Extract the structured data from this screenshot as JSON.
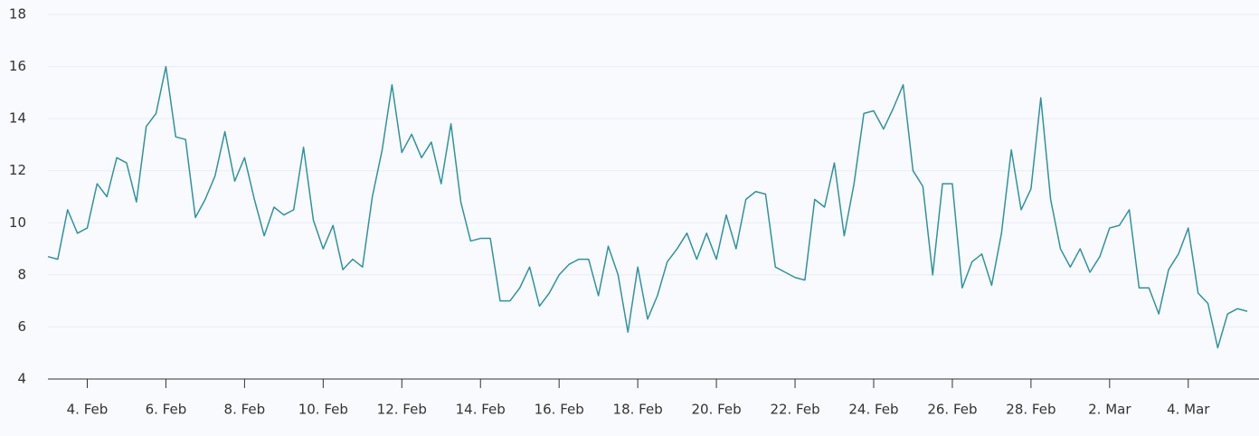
{
  "chart_data": {
    "type": "line",
    "categories": [
      null,
      null,
      null,
      null,
      "4. Feb",
      null,
      null,
      null,
      null,
      null,
      null,
      null,
      "6. Feb",
      null,
      null,
      null,
      null,
      null,
      null,
      null,
      "8. Feb",
      null,
      null,
      null,
      null,
      null,
      null,
      null,
      "10. Feb",
      null,
      null,
      null,
      null,
      null,
      null,
      null,
      "12. Feb",
      null,
      null,
      null,
      null,
      null,
      null,
      null,
      "14. Feb",
      null,
      null,
      null,
      null,
      null,
      null,
      null,
      "16. Feb",
      null,
      null,
      null,
      null,
      null,
      null,
      null,
      "18. Feb",
      null,
      null,
      null,
      null,
      null,
      null,
      null,
      "20. Feb",
      null,
      null,
      null,
      null,
      null,
      null,
      null,
      "22. Feb",
      null,
      null,
      null,
      null,
      null,
      null,
      null,
      "24. Feb",
      null,
      null,
      null,
      null,
      null,
      null,
      null,
      "26. Feb",
      null,
      null,
      null,
      null,
      null,
      null,
      null,
      "28. Feb",
      null,
      null,
      null,
      null,
      null,
      null,
      null,
      "2. Mar",
      null,
      null,
      null,
      null,
      null,
      null,
      null,
      "4. Mar",
      null,
      null,
      null,
      null,
      null,
      null
    ],
    "values": [
      8.7,
      8.6,
      10.5,
      9.6,
      9.8,
      11.5,
      11,
      12.5,
      12.3,
      10.8,
      13.7,
      14.2,
      16,
      13.3,
      13.2,
      10.2,
      10.9,
      11.8,
      13.5,
      11.6,
      12.5,
      10.9,
      9.5,
      10.6,
      10.3,
      10.5,
      12.9,
      10.1,
      9.0,
      9.9,
      8.2,
      8.6,
      8.3,
      11.0,
      12.8,
      15.3,
      12.7,
      13.4,
      12.5,
      13.1,
      11.5,
      13.8,
      10.8,
      9.3,
      9.4,
      9.4,
      7.0,
      7.0,
      7.5,
      8.3,
      6.8,
      7.3,
      8.0,
      8.4,
      8.6,
      8.6,
      7.2,
      9.1,
      8.0,
      5.8,
      8.3,
      6.3,
      7.2,
      8.5,
      9.0,
      9.6,
      8.6,
      9.6,
      8.6,
      10.3,
      9.0,
      10.9,
      11.2,
      11.1,
      8.3,
      8.1,
      7.9,
      7.8,
      10.9,
      10.6,
      12.3,
      9.5,
      11.5,
      14.2,
      14.3,
      13.6,
      14.4,
      15.3,
      12.0,
      11.4,
      8.0,
      11.5,
      11.5,
      7.5,
      8.5,
      8.8,
      7.6,
      9.6,
      12.8,
      10.5,
      11.3,
      14.8,
      10.9,
      9.0,
      8.3,
      9.0,
      8.1,
      8.7,
      9.8,
      9.9,
      10.5,
      7.5,
      7.5,
      6.5,
      8.2,
      8.8,
      9.8,
      7.3,
      6.9,
      5.2,
      6.5,
      6.7,
      6.6
    ],
    "color": "#2f93a0",
    "ylim": [
      4,
      18
    ],
    "yticks": [
      4,
      6,
      8,
      10,
      12,
      14,
      16,
      18
    ],
    "grid": true
  }
}
